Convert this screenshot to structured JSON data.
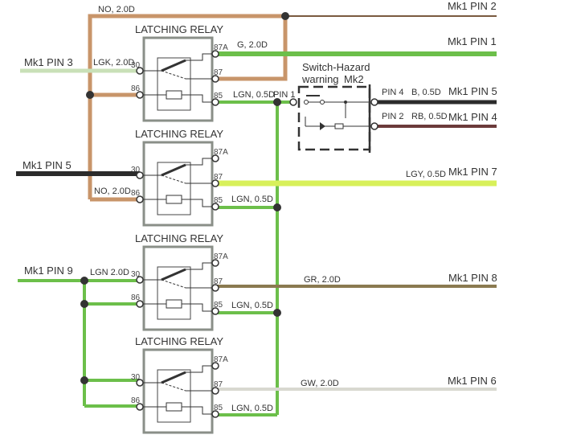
{
  "relays": [
    {
      "title": "LATCHING RELAY",
      "t30": "30",
      "t86": "86",
      "t87a": "87A",
      "t87": "87",
      "t85": "85"
    },
    {
      "title": "LATCHING RELAY",
      "t30": "30",
      "t86": "86",
      "t87a": "87A",
      "t87": "87",
      "t85": "85"
    },
    {
      "title": "LATCHING RELAY",
      "t30": "30",
      "t86": "86",
      "t87a": "87A",
      "t87": "87",
      "t85": "85"
    },
    {
      "title": "LATCHING RELAY",
      "t30": "30",
      "t86": "86",
      "t87a": "87A",
      "t87": "87",
      "t85": "85"
    }
  ],
  "labels": {
    "no_top": "NO, 2.0D",
    "mk1_pin2": "Mk1 PIN 2",
    "g_20d": "G, 2.0D",
    "mk1_pin1": "Mk1 PIN 1",
    "mk1_pin3": "Mk1 PIN 3",
    "lgk_20d": "LGK, 2.0D",
    "lgn_05d_1": "LGN, 0.5D",
    "pin1": "PIN 1",
    "switch_title_1": "Switch-Hazard",
    "switch_title_2": "warning",
    "switch_mk2": "Mk2",
    "pin4": "PIN 4",
    "b_05d": "B, 0.5D",
    "mk1_pin5_right": "Mk1 PIN 5",
    "pin2": "PIN 2",
    "rb_05d": "RB, 0.5D",
    "mk1_pin4": "Mk1 PIN 4",
    "mk1_pin5_left": "Mk1 PIN 5",
    "lgy_05d": "LGY, 0.5D",
    "mk1_pin7": "Mk1 PIN 7",
    "no_20d_2": "NO, 2.0D",
    "lgn_05d_2": "LGN, 0.5D",
    "mk1_pin9": "Mk1 PIN 9",
    "lgn_20d": "LGN 2.0D",
    "gr_20d": "GR, 2.0D",
    "mk1_pin8": "Mk1 PIN 8",
    "lgn_05d_3": "LGN, 0.5D",
    "gw_20d": "GW, 2.0D",
    "mk1_pin6": "Mk1 PIN 6",
    "lgn_05d_4": "LGN, 0.5D"
  },
  "colors": {
    "brown": "#c8956a",
    "green": "#6cbf4a",
    "light_green": "#c9e0b8",
    "yellow_green": "#d8f05a",
    "black": "#2b2b2b",
    "red_brown": "#6b3a3a",
    "olive": "#8a7a50",
    "gray_white": "#d8d8d0",
    "relay_box": "#8a8f88"
  }
}
